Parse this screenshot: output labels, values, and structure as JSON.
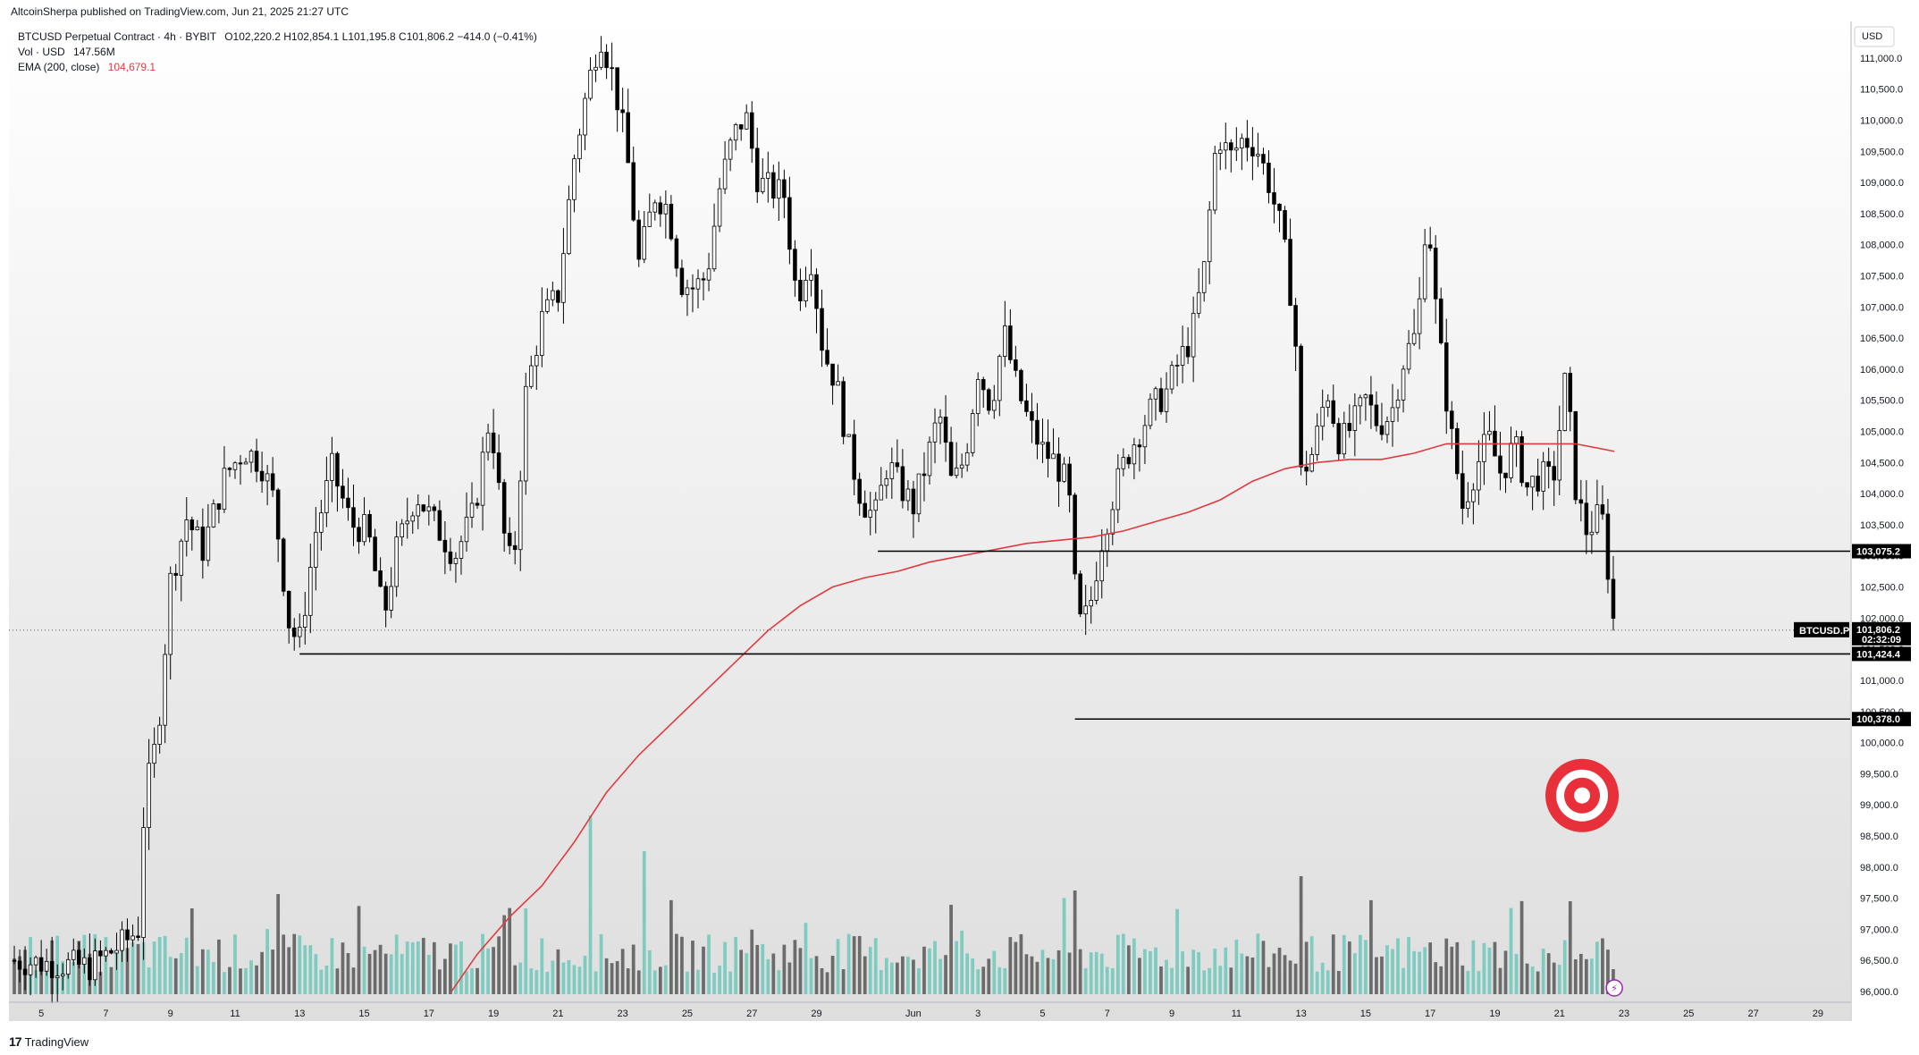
{
  "header": {
    "publisher": "AltcoinSherpa published on TradingView.com, Jun 21, 2025 21:27 UTC"
  },
  "legend": {
    "symbol": "BTCUSD Perpetual Contract · 4h · BYBIT",
    "ohlc": "O102,220.2 H102,854.1 L101,195.8 C101,806.2 −414.0 (−0.41%)",
    "volume_label": "Vol · USD",
    "volume_value": "147.56M",
    "ema_label": "EMA (200, close)",
    "ema_value": "104,679.1"
  },
  "footer": {
    "brand": "TradingView"
  },
  "colors": {
    "up": "#ffffff",
    "down": "#000000",
    "wick": "#000000",
    "vol_up": "#7ecbc0",
    "vol_down": "#6b6b6b",
    "ema": "#e03a3e",
    "target": "#e8303a",
    "grid_bg_top": "#ffffff",
    "grid_bg_bottom": "#e0e0e0"
  },
  "chart_data": {
    "type": "candlestick",
    "currency": "USD",
    "symbol_tag": "BTCUSD.P",
    "last_price": "101,806.2",
    "countdown": "02:32:09",
    "ylim": [
      96000,
      111400
    ],
    "price_ticks": [
      96000,
      96500,
      97000,
      97500,
      98000,
      98500,
      99000,
      99500,
      100000,
      100500,
      101000,
      101500,
      102000,
      102500,
      103000,
      103500,
      104000,
      104500,
      105000,
      105500,
      106000,
      106500,
      107000,
      107500,
      108000,
      108500,
      109000,
      109500,
      110000,
      110500,
      111000
    ],
    "price_tick_labels": [
      "96,000.0",
      "96,500.0",
      "97,000.0",
      "97,500.0",
      "98,000.0",
      "98,500.0",
      "99,000.0",
      "99,500.0",
      "100,000.0",
      "100,500.0",
      "101,000.0",
      "101,500.0",
      "102,000.0",
      "102,500.0",
      "103,000.0",
      "103,500.0",
      "104,000.0",
      "104,500.0",
      "105,000.0",
      "105,500.0",
      "106,000.0",
      "106,500.0",
      "107,000.0",
      "107,500.0",
      "108,000.0",
      "108,500.0",
      "109,000.0",
      "109,500.0",
      "110,000.0",
      "110,500.0",
      "111,000.0"
    ],
    "x_ticks": [
      {
        "day": 5,
        "label": "5"
      },
      {
        "day": 7,
        "label": "7"
      },
      {
        "day": 9,
        "label": "9"
      },
      {
        "day": 11,
        "label": "11"
      },
      {
        "day": 13,
        "label": "13"
      },
      {
        "day": 15,
        "label": "15"
      },
      {
        "day": 17,
        "label": "17"
      },
      {
        "day": 19,
        "label": "19"
      },
      {
        "day": 21,
        "label": "21"
      },
      {
        "day": 23,
        "label": "23"
      },
      {
        "day": 25,
        "label": "25"
      },
      {
        "day": 27,
        "label": "27"
      },
      {
        "day": 29,
        "label": "29"
      },
      {
        "day": 32,
        "label": "Jun"
      },
      {
        "day": 34,
        "label": "3"
      },
      {
        "day": 36,
        "label": "5"
      },
      {
        "day": 38,
        "label": "7"
      },
      {
        "day": 40,
        "label": "9"
      },
      {
        "day": 42,
        "label": "11"
      },
      {
        "day": 44,
        "label": "13"
      },
      {
        "day": 46,
        "label": "15"
      },
      {
        "day": 48,
        "label": "17"
      },
      {
        "day": 50,
        "label": "19"
      },
      {
        "day": 52,
        "label": "21"
      },
      {
        "day": 54,
        "label": "23"
      },
      {
        "day": 56,
        "label": "25"
      },
      {
        "day": 58,
        "label": "27"
      },
      {
        "day": 60,
        "label": "29"
      }
    ],
    "x_range_days": [
      4,
      61
    ],
    "close_path": [
      [
        4.0,
        96500
      ],
      [
        6.5,
        96400
      ],
      [
        7.6,
        96800
      ],
      [
        8.0,
        97000
      ],
      [
        8.2,
        99100
      ],
      [
        8.6,
        100100
      ],
      [
        9.0,
        102600
      ],
      [
        9.5,
        103600
      ],
      [
        10.0,
        103100
      ],
      [
        10.7,
        104300
      ],
      [
        11.3,
        104700
      ],
      [
        11.8,
        104500
      ],
      [
        12.2,
        103900
      ],
      [
        12.7,
        101800
      ],
      [
        13.0,
        101650
      ],
      [
        13.5,
        103400
      ],
      [
        14.0,
        104400
      ],
      [
        14.6,
        103500
      ],
      [
        15.1,
        103400
      ],
      [
        15.6,
        102000
      ],
      [
        16.0,
        103100
      ],
      [
        16.6,
        104000
      ],
      [
        17.2,
        103500
      ],
      [
        17.8,
        103000
      ],
      [
        18.4,
        103700
      ],
      [
        18.9,
        105300
      ],
      [
        19.3,
        103400
      ],
      [
        19.6,
        102700
      ],
      [
        20.0,
        105600
      ],
      [
        20.5,
        106800
      ],
      [
        21.0,
        107200
      ],
      [
        21.5,
        109400
      ],
      [
        21.9,
        110500
      ],
      [
        22.3,
        111400
      ],
      [
        22.7,
        110700
      ],
      [
        23.1,
        109600
      ],
      [
        23.5,
        107700
      ],
      [
        24.0,
        108800
      ],
      [
        24.4,
        108600
      ],
      [
        24.8,
        107400
      ],
      [
        25.2,
        107300
      ],
      [
        25.6,
        107500
      ],
      [
        26.0,
        108900
      ],
      [
        26.4,
        109700
      ],
      [
        26.8,
        110100
      ],
      [
        27.2,
        109000
      ],
      [
        27.6,
        108900
      ],
      [
        28.0,
        108800
      ],
      [
        28.4,
        107100
      ],
      [
        28.8,
        107900
      ],
      [
        29.2,
        106300
      ],
      [
        29.6,
        105800
      ],
      [
        30.0,
        104700
      ],
      [
        30.4,
        103900
      ],
      [
        30.8,
        103600
      ],
      [
        31.2,
        104500
      ],
      [
        31.6,
        104100
      ],
      [
        32.0,
        103800
      ],
      [
        32.4,
        104500
      ],
      [
        32.8,
        105300
      ],
      [
        33.2,
        104100
      ],
      [
        33.6,
        104600
      ],
      [
        34.0,
        106000
      ],
      [
        34.4,
        105400
      ],
      [
        34.8,
        106600
      ],
      [
        35.2,
        105700
      ],
      [
        35.6,
        105100
      ],
      [
        36.0,
        104700
      ],
      [
        36.4,
        104500
      ],
      [
        36.8,
        104100
      ],
      [
        37.0,
        102500
      ],
      [
        37.2,
        101800
      ],
      [
        37.5,
        102300
      ],
      [
        37.8,
        103200
      ],
      [
        38.2,
        104000
      ],
      [
        38.6,
        104600
      ],
      [
        39.0,
        105000
      ],
      [
        39.4,
        105400
      ],
      [
        39.8,
        105600
      ],
      [
        40.2,
        106100
      ],
      [
        40.6,
        106500
      ],
      [
        41.0,
        107600
      ],
      [
        41.4,
        109800
      ],
      [
        41.8,
        109400
      ],
      [
        42.2,
        109700
      ],
      [
        42.6,
        109600
      ],
      [
        43.0,
        109000
      ],
      [
        43.4,
        108200
      ],
      [
        43.8,
        106800
      ],
      [
        44.0,
        104300
      ],
      [
        44.4,
        104700
      ],
      [
        44.8,
        105700
      ],
      [
        45.2,
        104800
      ],
      [
        45.6,
        105100
      ],
      [
        46.0,
        105500
      ],
      [
        46.4,
        105100
      ],
      [
        46.8,
        105300
      ],
      [
        47.2,
        106200
      ],
      [
        47.6,
        106600
      ],
      [
        47.9,
        108700
      ],
      [
        48.2,
        106800
      ],
      [
        48.6,
        105100
      ],
      [
        49.0,
        103800
      ],
      [
        49.4,
        104400
      ],
      [
        49.8,
        104900
      ],
      [
        50.2,
        104300
      ],
      [
        50.6,
        104800
      ],
      [
        51.0,
        104100
      ],
      [
        51.4,
        104300
      ],
      [
        51.8,
        104200
      ],
      [
        52.2,
        105900
      ],
      [
        52.5,
        104100
      ],
      [
        52.8,
        103400
      ],
      [
        53.0,
        103500
      ],
      [
        53.3,
        103700
      ],
      [
        53.5,
        102800
      ],
      [
        53.7,
        101806
      ]
    ],
    "ema_path": [
      [
        17.7,
        96000
      ],
      [
        18.5,
        96600
      ],
      [
        19.5,
        97200
      ],
      [
        20.5,
        97700
      ],
      [
        21.5,
        98400
      ],
      [
        22.5,
        99200
      ],
      [
        23.5,
        99800
      ],
      [
        24.5,
        100300
      ],
      [
        25.5,
        100800
      ],
      [
        26.5,
        101300
      ],
      [
        27.5,
        101800
      ],
      [
        28.5,
        102200
      ],
      [
        29.5,
        102500
      ],
      [
        30.5,
        102650
      ],
      [
        31.5,
        102750
      ],
      [
        32.5,
        102900
      ],
      [
        33.5,
        103000
      ],
      [
        34.5,
        103100
      ],
      [
        35.5,
        103200
      ],
      [
        36.5,
        103250
      ],
      [
        37.5,
        103300
      ],
      [
        38.5,
        103400
      ],
      [
        39.5,
        103550
      ],
      [
        40.5,
        103700
      ],
      [
        41.5,
        103900
      ],
      [
        42.5,
        104200
      ],
      [
        43.5,
        104400
      ],
      [
        44.5,
        104500
      ],
      [
        45.5,
        104550
      ],
      [
        46.5,
        104550
      ],
      [
        47.5,
        104650
      ],
      [
        48.5,
        104800
      ],
      [
        49.5,
        104800
      ],
      [
        50.5,
        104800
      ],
      [
        51.5,
        104800
      ],
      [
        52.5,
        104800
      ],
      [
        53.5,
        104700
      ],
      [
        53.7,
        104679
      ]
    ],
    "horizontal_levels": [
      {
        "price": 103075.2,
        "label": "103,075.2",
        "from_day": 30.9
      },
      {
        "price": 101424.4,
        "label": "101,424.4",
        "from_day": 13.0
      },
      {
        "price": 100378.0,
        "label": "100,378.0",
        "from_day": 37.0
      }
    ],
    "volume_spikes": [
      {
        "day": 22.0,
        "rel": 1.0
      },
      {
        "day": 23.6,
        "rel": 0.8
      },
      {
        "day": 37.0,
        "rel": 0.58
      },
      {
        "day": 44.0,
        "rel": 0.66
      },
      {
        "day": 52.3,
        "rel": 0.52
      },
      {
        "day": 12.3,
        "rel": 0.56
      },
      {
        "day": 9.7,
        "rel": 0.48
      },
      {
        "day": 20.0,
        "rel": 0.48
      }
    ],
    "target_marker": {
      "day": 52.7,
      "price": 99150
    }
  }
}
